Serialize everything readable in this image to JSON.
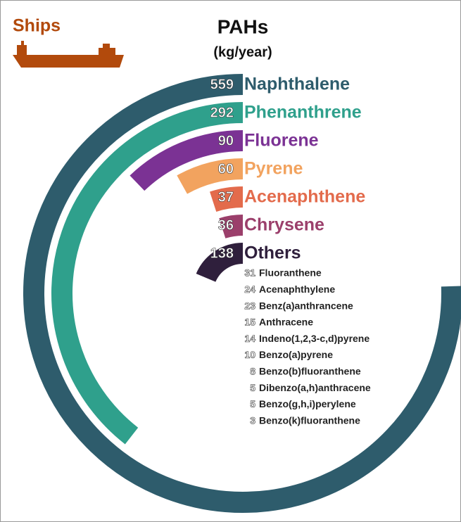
{
  "chart_data": {
    "type": "radial_bar",
    "title": "PAHs",
    "subtitle": "(kg/year)",
    "source_label": "Ships",
    "categories": [
      "Naphthalene",
      "Phenanthrene",
      "Fluorene",
      "Pyrene",
      "Acenaphthene",
      "Chrysene",
      "Others"
    ],
    "values": [
      559,
      292,
      90,
      60,
      37,
      36,
      138
    ],
    "colors": [
      "#2e5c6c",
      "#2fa08c",
      "#7b3294",
      "#f2a35f",
      "#e36b4c",
      "#9b3f6b",
      "#2f1f3c"
    ],
    "others": {
      "categories": [
        "Fluoranthene",
        "Acenaphthylene",
        "Benz(a)anthrancene",
        "Anthracene",
        "Indeno(1,2,3-c,d)pyrene",
        "Benzo(a)pyrene",
        "Benzo(b)fluoranthene",
        "Dibenzo(a,h)anthracene",
        "Benzo(g,h,i)perylene",
        "Benzo(k)fluoranthene"
      ],
      "values": [
        31,
        24,
        23,
        15,
        14,
        10,
        8,
        5,
        5,
        3
      ]
    }
  }
}
